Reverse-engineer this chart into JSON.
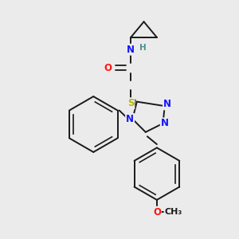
{
  "background_color": "#ebebeb",
  "colors": {
    "C": "#1a1a1a",
    "N": "#1414ff",
    "O": "#ff1414",
    "S": "#b8b800",
    "H": "#4a9090",
    "bond": "#1a1a1a"
  },
  "figsize": [
    3.0,
    3.0
  ],
  "dpi": 100
}
